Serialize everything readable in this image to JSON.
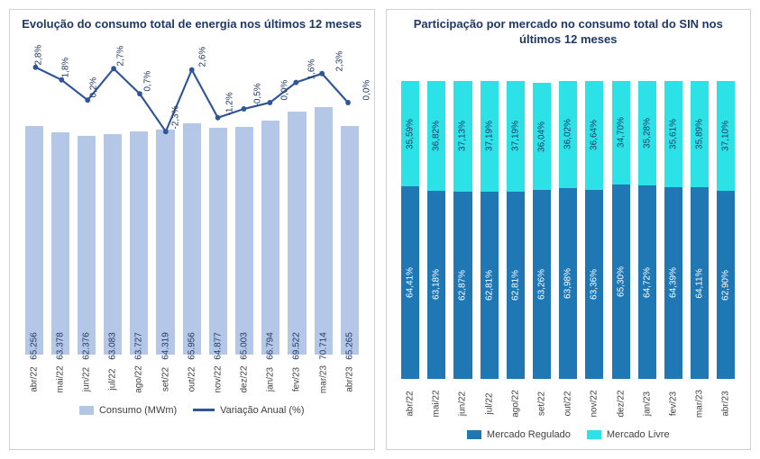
{
  "left": {
    "title": "Evolução do consumo total de energia nos últimos 12 meses",
    "categories": [
      "abr/22",
      "mai/22",
      "jun/22",
      "jul/22",
      "ago/22",
      "set/22",
      "out/22",
      "nov/22",
      "dez/22",
      "jan/23",
      "fev/23",
      "mar/23",
      "abr/23"
    ],
    "bars": {
      "name": "Consumo (MWm)",
      "color": "#b4c7e7",
      "values": [
        65256,
        63378,
        62376,
        63083,
        63727,
        64319,
        65956,
        64877,
        65003,
        66794,
        69522,
        70714,
        65265
      ],
      "labels": [
        "65.256",
        "63.378",
        "62.376",
        "63.083",
        "63.727",
        "64.319",
        "65.956",
        "64.877",
        "65.003",
        "66.794",
        "69.522",
        "70.714",
        "65.265"
      ],
      "ymax": 90000,
      "ymin": 0
    },
    "line": {
      "name": "Variação Anual (%)",
      "color": "#2f5597",
      "stroke_width": 2.2,
      "marker_radius": 3,
      "values": [
        2.8,
        1.8,
        0.2,
        2.7,
        0.7,
        -2.3,
        2.6,
        -1.2,
        -0.5,
        0.0,
        1.6,
        2.3,
        0.0
      ],
      "labels": [
        "2,8%",
        "1,8%",
        "0,2%",
        "2,7%",
        "0,7%",
        "-2,3%",
        "2,6%",
        "-1,2%",
        "-0,5%",
        "0,0%",
        "1,6%",
        "2,3%",
        "0,0%"
      ],
      "ymin": -20,
      "ymax": 5
    },
    "legend_bar": "Consumo (MWm)",
    "legend_line": "Variação Anual (%)"
  },
  "right": {
    "title": "Participação por mercado no consumo total do SIN nos últimos 12 meses",
    "categories": [
      "abr/22",
      "mai/22",
      "jun/22",
      "jul/22",
      "ago/22",
      "set/22",
      "out/22",
      "nov/22",
      "dez/22",
      "jan/23",
      "fev/23",
      "mar/23",
      "abr/23"
    ],
    "series": [
      {
        "name": "Mercado Regulado",
        "color": "#1f77b4",
        "values": [
          64.41,
          63.18,
          62.87,
          62.81,
          62.81,
          63.26,
          63.98,
          63.36,
          65.3,
          64.72,
          64.39,
          64.11,
          62.9
        ],
        "labels": [
          "64,41%",
          "63,18%",
          "62,87%",
          "62,81%",
          "62,81%",
          "63,26%",
          "63,98%",
          "63,36%",
          "65,30%",
          "64,72%",
          "64,39%",
          "64,11%",
          "62,90%"
        ]
      },
      {
        "name": "Mercado Livre",
        "color": "#2ce2e6",
        "values": [
          35.59,
          36.82,
          37.13,
          37.19,
          37.19,
          36.04,
          36.02,
          36.64,
          34.7,
          35.28,
          35.61,
          35.89,
          37.1
        ],
        "labels": [
          "35,59%",
          "36,82%",
          "37,13%",
          "37,19%",
          "37,19%",
          "36,04%",
          "36,02%",
          "36,64%",
          "34,70%",
          "35,28%",
          "35,61%",
          "35,89%",
          "37,10%"
        ]
      }
    ],
    "legend_bottom": "Mercado Regulado",
    "legend_top": "Mercado Livre"
  }
}
